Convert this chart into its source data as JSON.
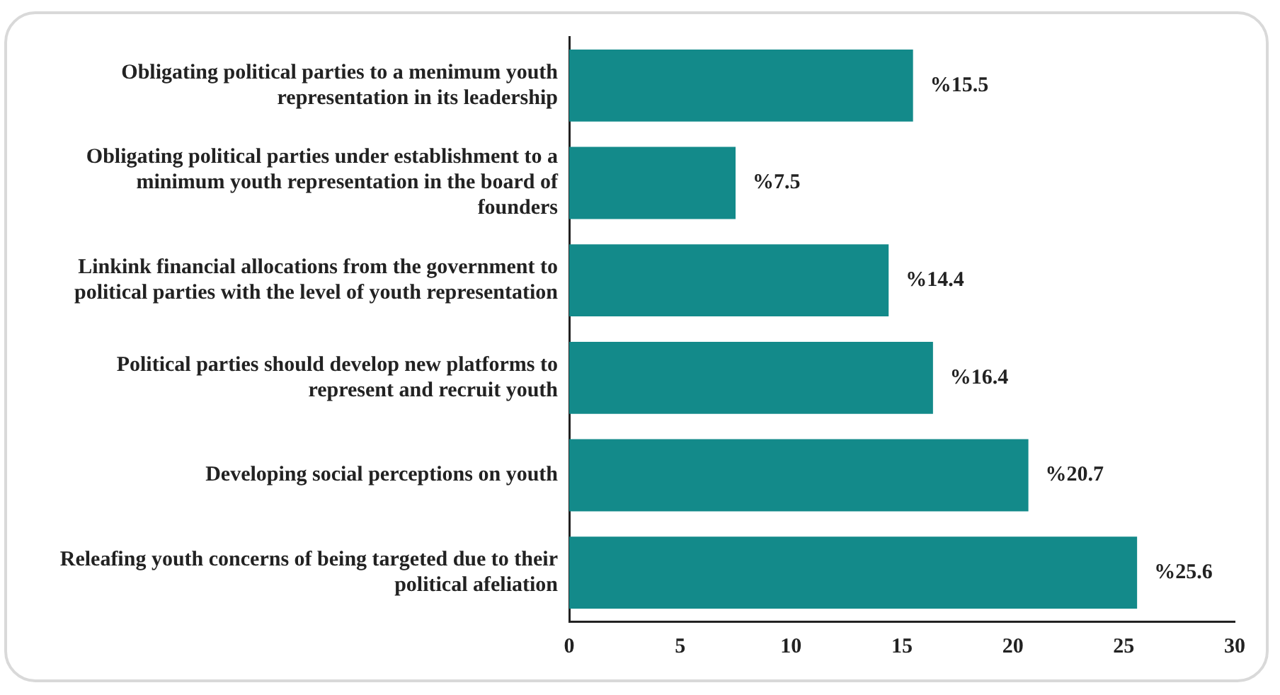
{
  "chart_data": {
    "type": "bar",
    "orientation": "horizontal",
    "categories": [
      "Obligating political parties to a menimum youth representation in its leadership",
      "Obligating political parties under establishment to a minimum youth representation in the board of founders",
      "Linkink financial allocations from the government to political parties with the level of youth representation",
      "Political parties should develop new platforms to represent and recruit youth",
      "Developing social perceptions on youth",
      "Releafing youth concerns of being targeted due to their political afeliation"
    ],
    "values": [
      15.5,
      7.5,
      14.4,
      16.4,
      20.7,
      25.6
    ],
    "value_labels": [
      "%15.5",
      "%7.5",
      "%14.4",
      "%16.4",
      "%20.7",
      "%25.6"
    ],
    "color": "#138a8a",
    "xlim": [
      0,
      30
    ],
    "xticks": [
      0,
      5,
      10,
      15,
      20,
      25,
      30
    ],
    "grid": false,
    "legend": false
  }
}
